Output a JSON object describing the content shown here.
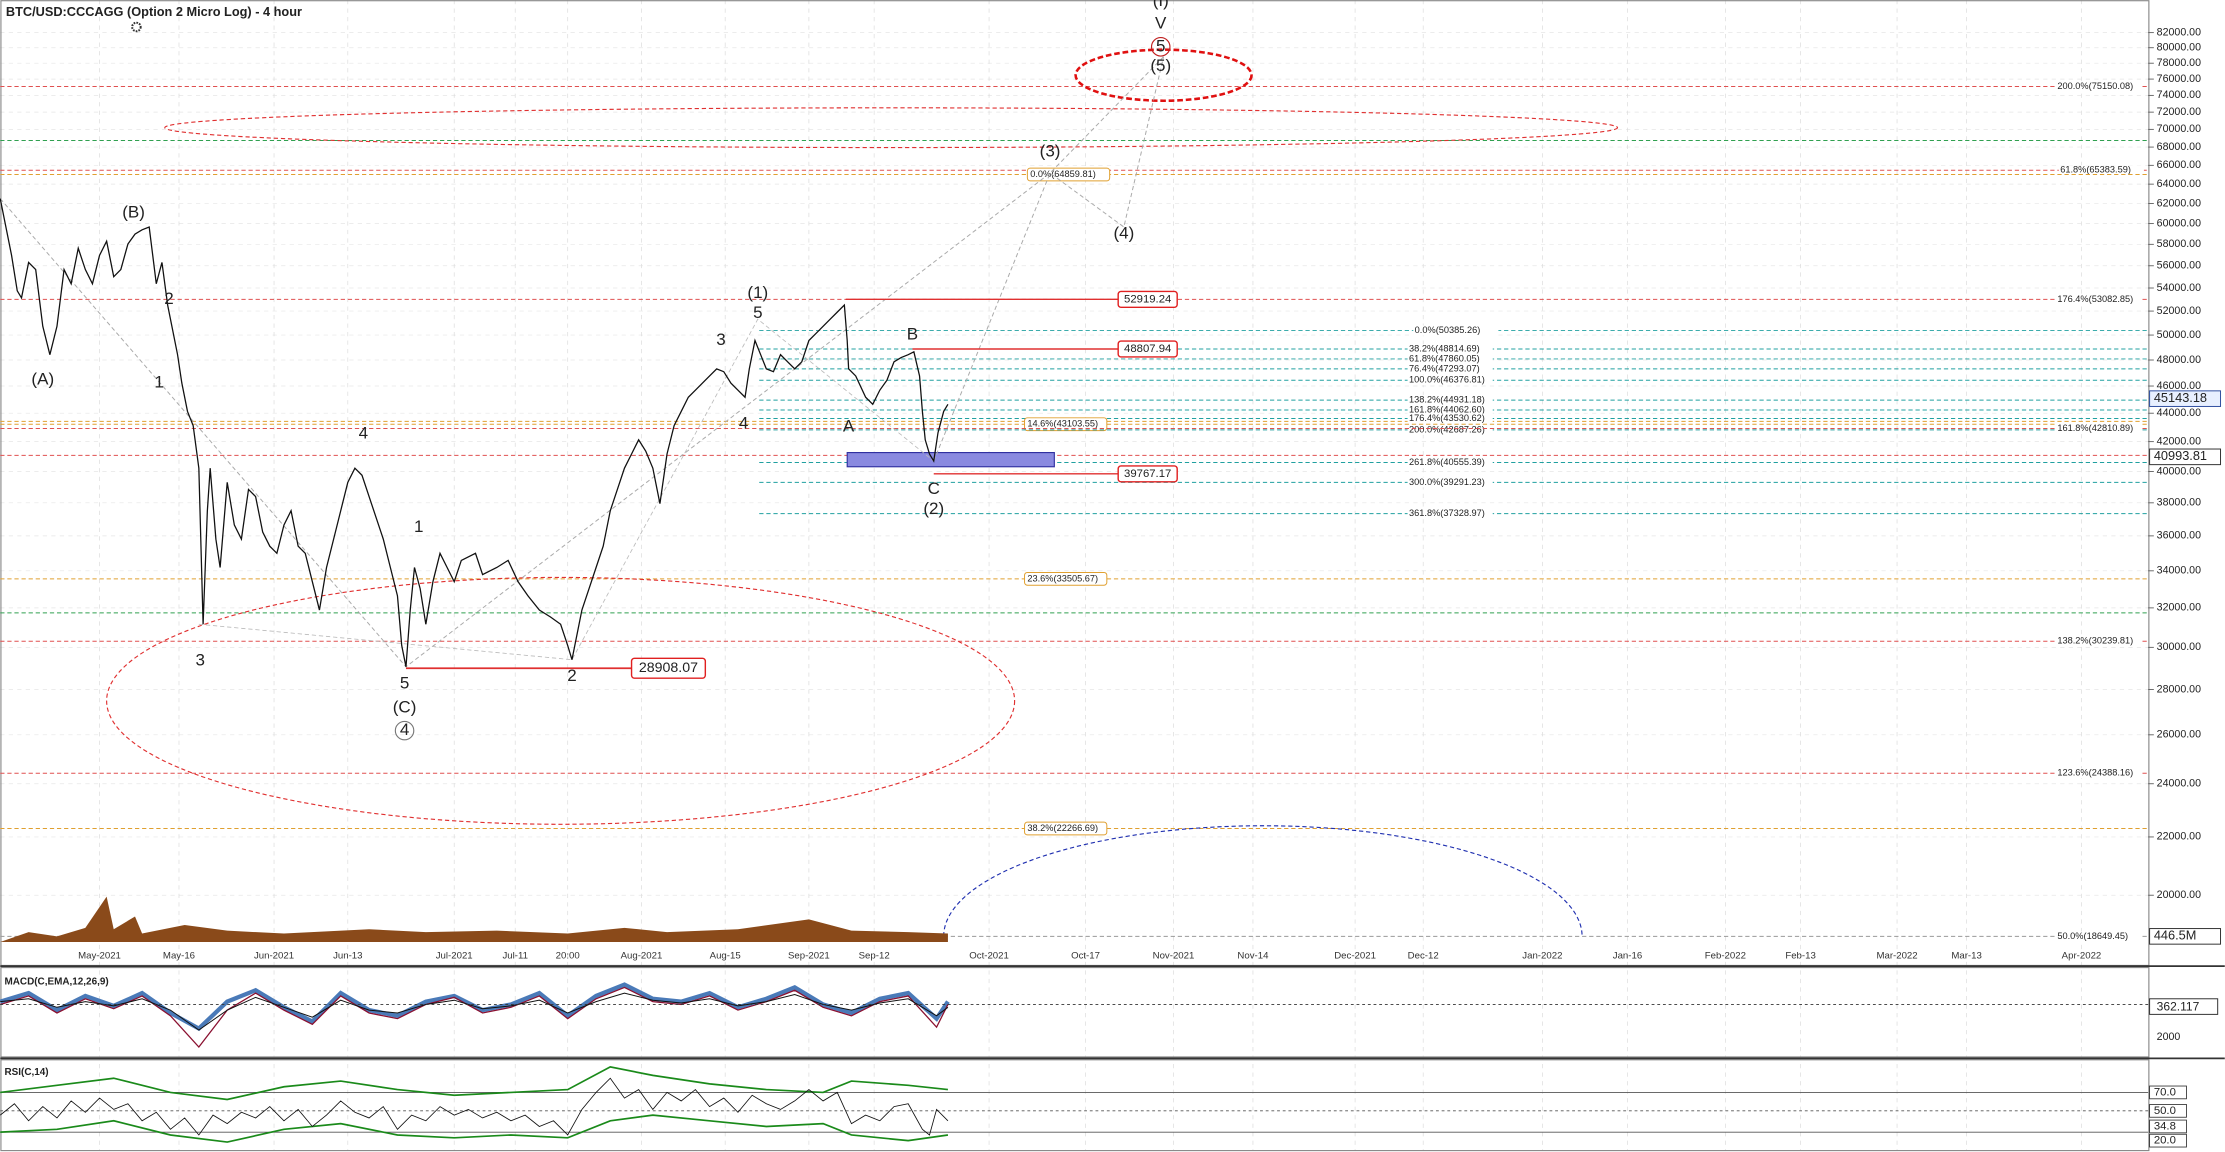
{
  "header": {
    "title": "BTC/USD:CCCAGG (Option 2 Micro Log) - 4 hour"
  },
  "price_axis": {
    "ticks": [
      "82000.00",
      "80000.00",
      "78000.00",
      "76000.00",
      "74000.00",
      "72000.00",
      "70000.00",
      "68000.00",
      "66000.00",
      "64000.00",
      "62000.00",
      "60000.00",
      "58000.00",
      "56000.00",
      "54000.00",
      "52000.00",
      "50000.00",
      "48000.00",
      "46000.00",
      "44000.00",
      "42000.00",
      "40000.00",
      "38000.00",
      "36000.00",
      "34000.00",
      "32000.00",
      "30000.00",
      "28000.00",
      "26000.00",
      "24000.00",
      "22000.00",
      "20000.00"
    ]
  },
  "time_axis": {
    "labels": [
      "May-2021",
      "May-16",
      "Jun-2021",
      "Jun-13",
      "Jul-2021",
      "Jul-11",
      "20:00",
      "Aug-2021",
      "Aug-15",
      "Sep-2021",
      "Sep-12",
      "Oct-2021",
      "Oct-17",
      "Nov-2021",
      "Nov-14",
      "Dec-2021",
      "Dec-12",
      "Jan-2022",
      "Jan-16",
      "Feb-2022",
      "Feb-13",
      "Mar-2022",
      "Mar-13",
      "Apr-2022"
    ]
  },
  "fib_labels": [
    "200.0%(75150.08)",
    "61.8%(65383.59)",
    "0.0%(64859.81)",
    "176.4%(53082.85)",
    "0.0%(50385.26)",
    "38.2%(48814.69)",
    "61.8%(47860.05)",
    "76.4%(47293.07)",
    "100.0%(46376.81)",
    "138.2%(44931.18)",
    "161.8%(44062.60)",
    "176.4%(43530.62)",
    "14.6%(43103.55)",
    "200.0%(42687.26)",
    "161.8%(42810.89)",
    "261.8%(40555.39)",
    "300.0%(39291.23)",
    "361.8%(37328.97)",
    "23.6%(33505.67)",
    "138.2%(30239.81)",
    "123.6%(24388.16)",
    "38.2%(22266.69)",
    "50.0%(18649.45)"
  ],
  "price_tags": [
    "52919.24",
    "48807.94",
    "39767.17",
    "28908.07"
  ],
  "axis_tags": [
    "45143.18",
    "40993.81",
    "446.5M"
  ],
  "wave_labels": [
    "(I)",
    "V",
    "5",
    "(5)",
    "(3)",
    "(4)",
    "(B)",
    "2",
    "1",
    "(A)",
    "3",
    "4",
    "1",
    "5",
    "(C)",
    "4",
    "2",
    "(1)",
    "5",
    "3",
    "4",
    "A",
    "B",
    "C",
    "(2)"
  ],
  "macd": {
    "title": "MACD(C,EMA,12,26,9)",
    "tags": [
      "362.117",
      "2000"
    ]
  },
  "rsi": {
    "title": "RSI(C,14)",
    "tags": [
      "70.0",
      "50.0",
      "34.8",
      "20.0"
    ]
  }
}
